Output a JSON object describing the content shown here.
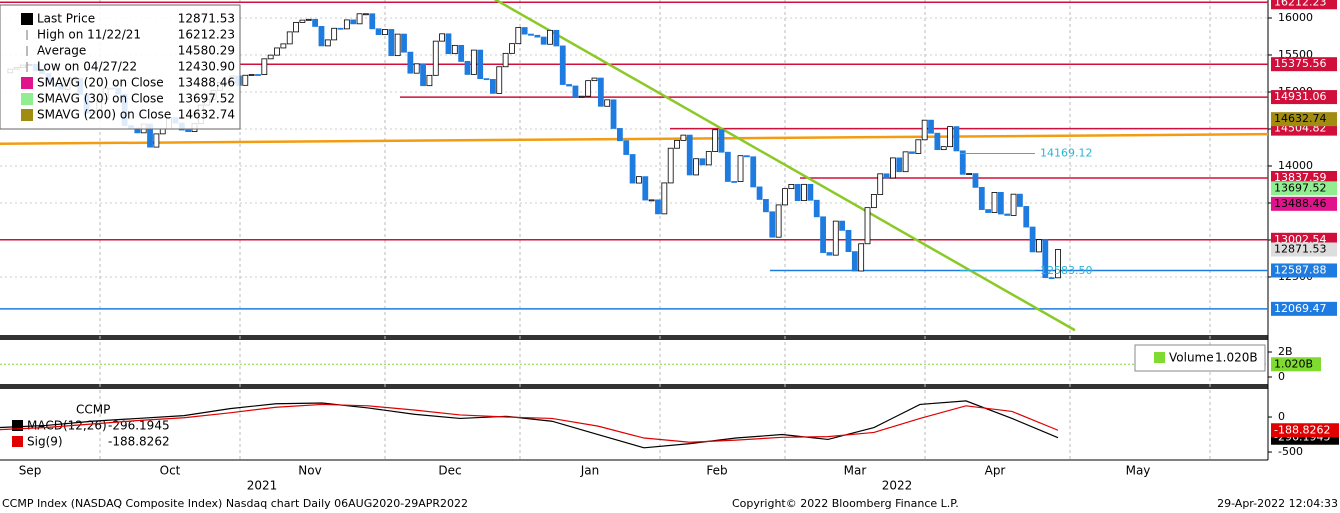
{
  "chart_data": {
    "type": "candlestick",
    "closes": [
      15259,
      15309,
      15331,
      15363,
      15374,
      15286,
      15248,
      15115,
      15105,
      15037,
      15161,
      15181,
      14969,
      14713,
      14746,
      14896,
      15052,
      15047,
      14970,
      14546,
      14512,
      14448,
      14567,
      14255,
      14434,
      14502,
      14654,
      14580,
      14486,
      14465,
      14572,
      14823,
      14897,
      15022,
      15129,
      15122,
      15216,
      15090,
      15226,
      15236,
      15235,
      15448,
      15498,
      15595,
      15650,
      15812,
      15940,
      15971,
      15982,
      15886,
      15623,
      15704,
      15861,
      15853,
      15974,
      15921,
      16057,
      16057,
      15854,
      15775,
      15845,
      15491,
      15782,
      15538,
      15254,
      15381,
      15085,
      15225,
      15687,
      15786,
      15518,
      15630,
      15413,
      15237,
      15566,
      15180,
      15170,
      14981,
      15341,
      15522,
      15653,
      15871,
      15782,
      15766,
      15742,
      15645,
      15833,
      15622,
      15101,
      15081,
      14936,
      14943,
      15153,
      15188,
      14807,
      14894,
      14507,
      14341,
      14155,
      13769,
      13856,
      13540,
      13542,
      13353,
      13771,
      14240,
      14346,
      14417,
      13879,
      14098,
      14015,
      14195,
      14490,
      14186,
      13791,
      13790,
      14139,
      14124,
      13717,
      13548,
      13381,
      13038,
      13474,
      13694,
      13751,
      13532,
      13752,
      13537,
      13313,
      12830,
      12795,
      13255,
      13130,
      12843,
      12581,
      12949,
      13437,
      13615,
      13894,
      13838,
      14109,
      13923,
      14191,
      14169,
      14354,
      14619,
      14443,
      14221,
      14261,
      14532,
      14204,
      13888,
      13897,
      13711,
      13411,
      13371,
      13643,
      13351,
      13332,
      13619,
      13453,
      13175,
      12839,
      13004,
      12491,
      12489,
      12872
    ],
    "up_color": "#ffffff",
    "down_color": "#1e7be0",
    "ylim": [
      11716,
      16243
    ],
    "yticks": [
      16000,
      15500,
      15000,
      14500,
      14000,
      13500,
      13000,
      12500
    ],
    "levels": [
      {
        "value": 16212.23,
        "color": "#d0103a"
      },
      {
        "value": 15375.56,
        "color": "#d0103a"
      },
      {
        "value": 14931.06,
        "color": "#d0103a"
      },
      {
        "value": 14504.82,
        "color": "#d0103a"
      },
      {
        "value": 13837.59,
        "color": "#d0103a"
      },
      {
        "value": 13002.54,
        "color": "#d0103a"
      },
      {
        "value": 12587.88,
        "color": "#1e7be0"
      },
      {
        "value": 12069.47,
        "color": "#1e7be0"
      }
    ],
    "trendlines": [
      {
        "color": "#f39c12",
        "values": [
          14300,
          14430
        ]
      },
      {
        "color": "#8ac926",
        "values": [
          16290,
          11780
        ]
      }
    ],
    "ma_labels": [
      {
        "value": 14632.74,
        "color": "#a08c10"
      },
      {
        "value": 13697.52,
        "color": "#90ee90"
      },
      {
        "value": 13488.46,
        "color": "#e0138c"
      }
    ],
    "last_label": 12871.53,
    "annotations": [
      {
        "value": 14169.12,
        "label": "14169.12"
      },
      {
        "value": 12583.5,
        "label": "12583.50"
      }
    ],
    "months": [
      "Sep",
      "Oct",
      "Nov",
      "Dec",
      "Jan",
      "Feb",
      "Mar",
      "Apr",
      "May"
    ],
    "years": [
      "2021",
      "2022"
    ],
    "legend": [
      {
        "name": "Last Price",
        "value": "12871.53",
        "color": "#000"
      },
      {
        "name": "High on 11/22/21",
        "value": "16212.23",
        "color": null
      },
      {
        "name": "Average",
        "value": "14580.29",
        "color": null
      },
      {
        "name": "Low on 04/27/22",
        "value": "12430.90",
        "color": null
      },
      {
        "name": "SMAVG (20)  on Close",
        "value": "13488.46",
        "color": "#e0138c"
      },
      {
        "name": "SMAVG (30)  on Close",
        "value": "13697.52",
        "color": "#90ee90"
      },
      {
        "name": "SMAVG (200)  on Close",
        "value": "14632.74",
        "color": "#a08c10"
      }
    ],
    "volume": {
      "name": "Volume",
      "value": 1020000000,
      "value_label": "1.020B",
      "legend_label": "1.020B",
      "color": "#7fdb2f",
      "vlim": [
        -160000000,
        2880000000
      ],
      "yticks": [
        {
          "value": 2000000000,
          "label": "2B"
        },
        0
      ]
    },
    "macd": {
      "title": "CCMP",
      "mlim": [
        -614,
        386
      ],
      "yticks": [
        0,
        -500
      ],
      "series": [
        {
          "name": "MACD(12,26)",
          "value_label": "-296.1945",
          "color": "#000",
          "values": [
            -150,
            -120,
            -60,
            -20,
            20,
            120,
            190,
            200,
            130,
            40,
            -20,
            10,
            -60,
            -250,
            -440,
            -380,
            -300,
            -250,
            -320,
            -150,
            180,
            230,
            -20,
            -296
          ]
        },
        {
          "name": "Sig(9)",
          "value_label": "-188.8262",
          "color": "#e00000",
          "values": [
            -180,
            -150,
            -100,
            -50,
            -10,
            60,
            140,
            180,
            160,
            100,
            30,
            0,
            -20,
            -130,
            -300,
            -360,
            -330,
            -290,
            -280,
            -220,
            -20,
            160,
            80,
            -189
          ]
        }
      ]
    },
    "footer_left": "CCMP Index (NASDAQ Composite Index) Nasdaq chart  Daily 06AUG2020-29APR2022",
    "footer_center": "Copyright© 2022 Bloomberg Finance L.P.",
    "footer_right": "29-Apr-2022 12:04:33"
  }
}
